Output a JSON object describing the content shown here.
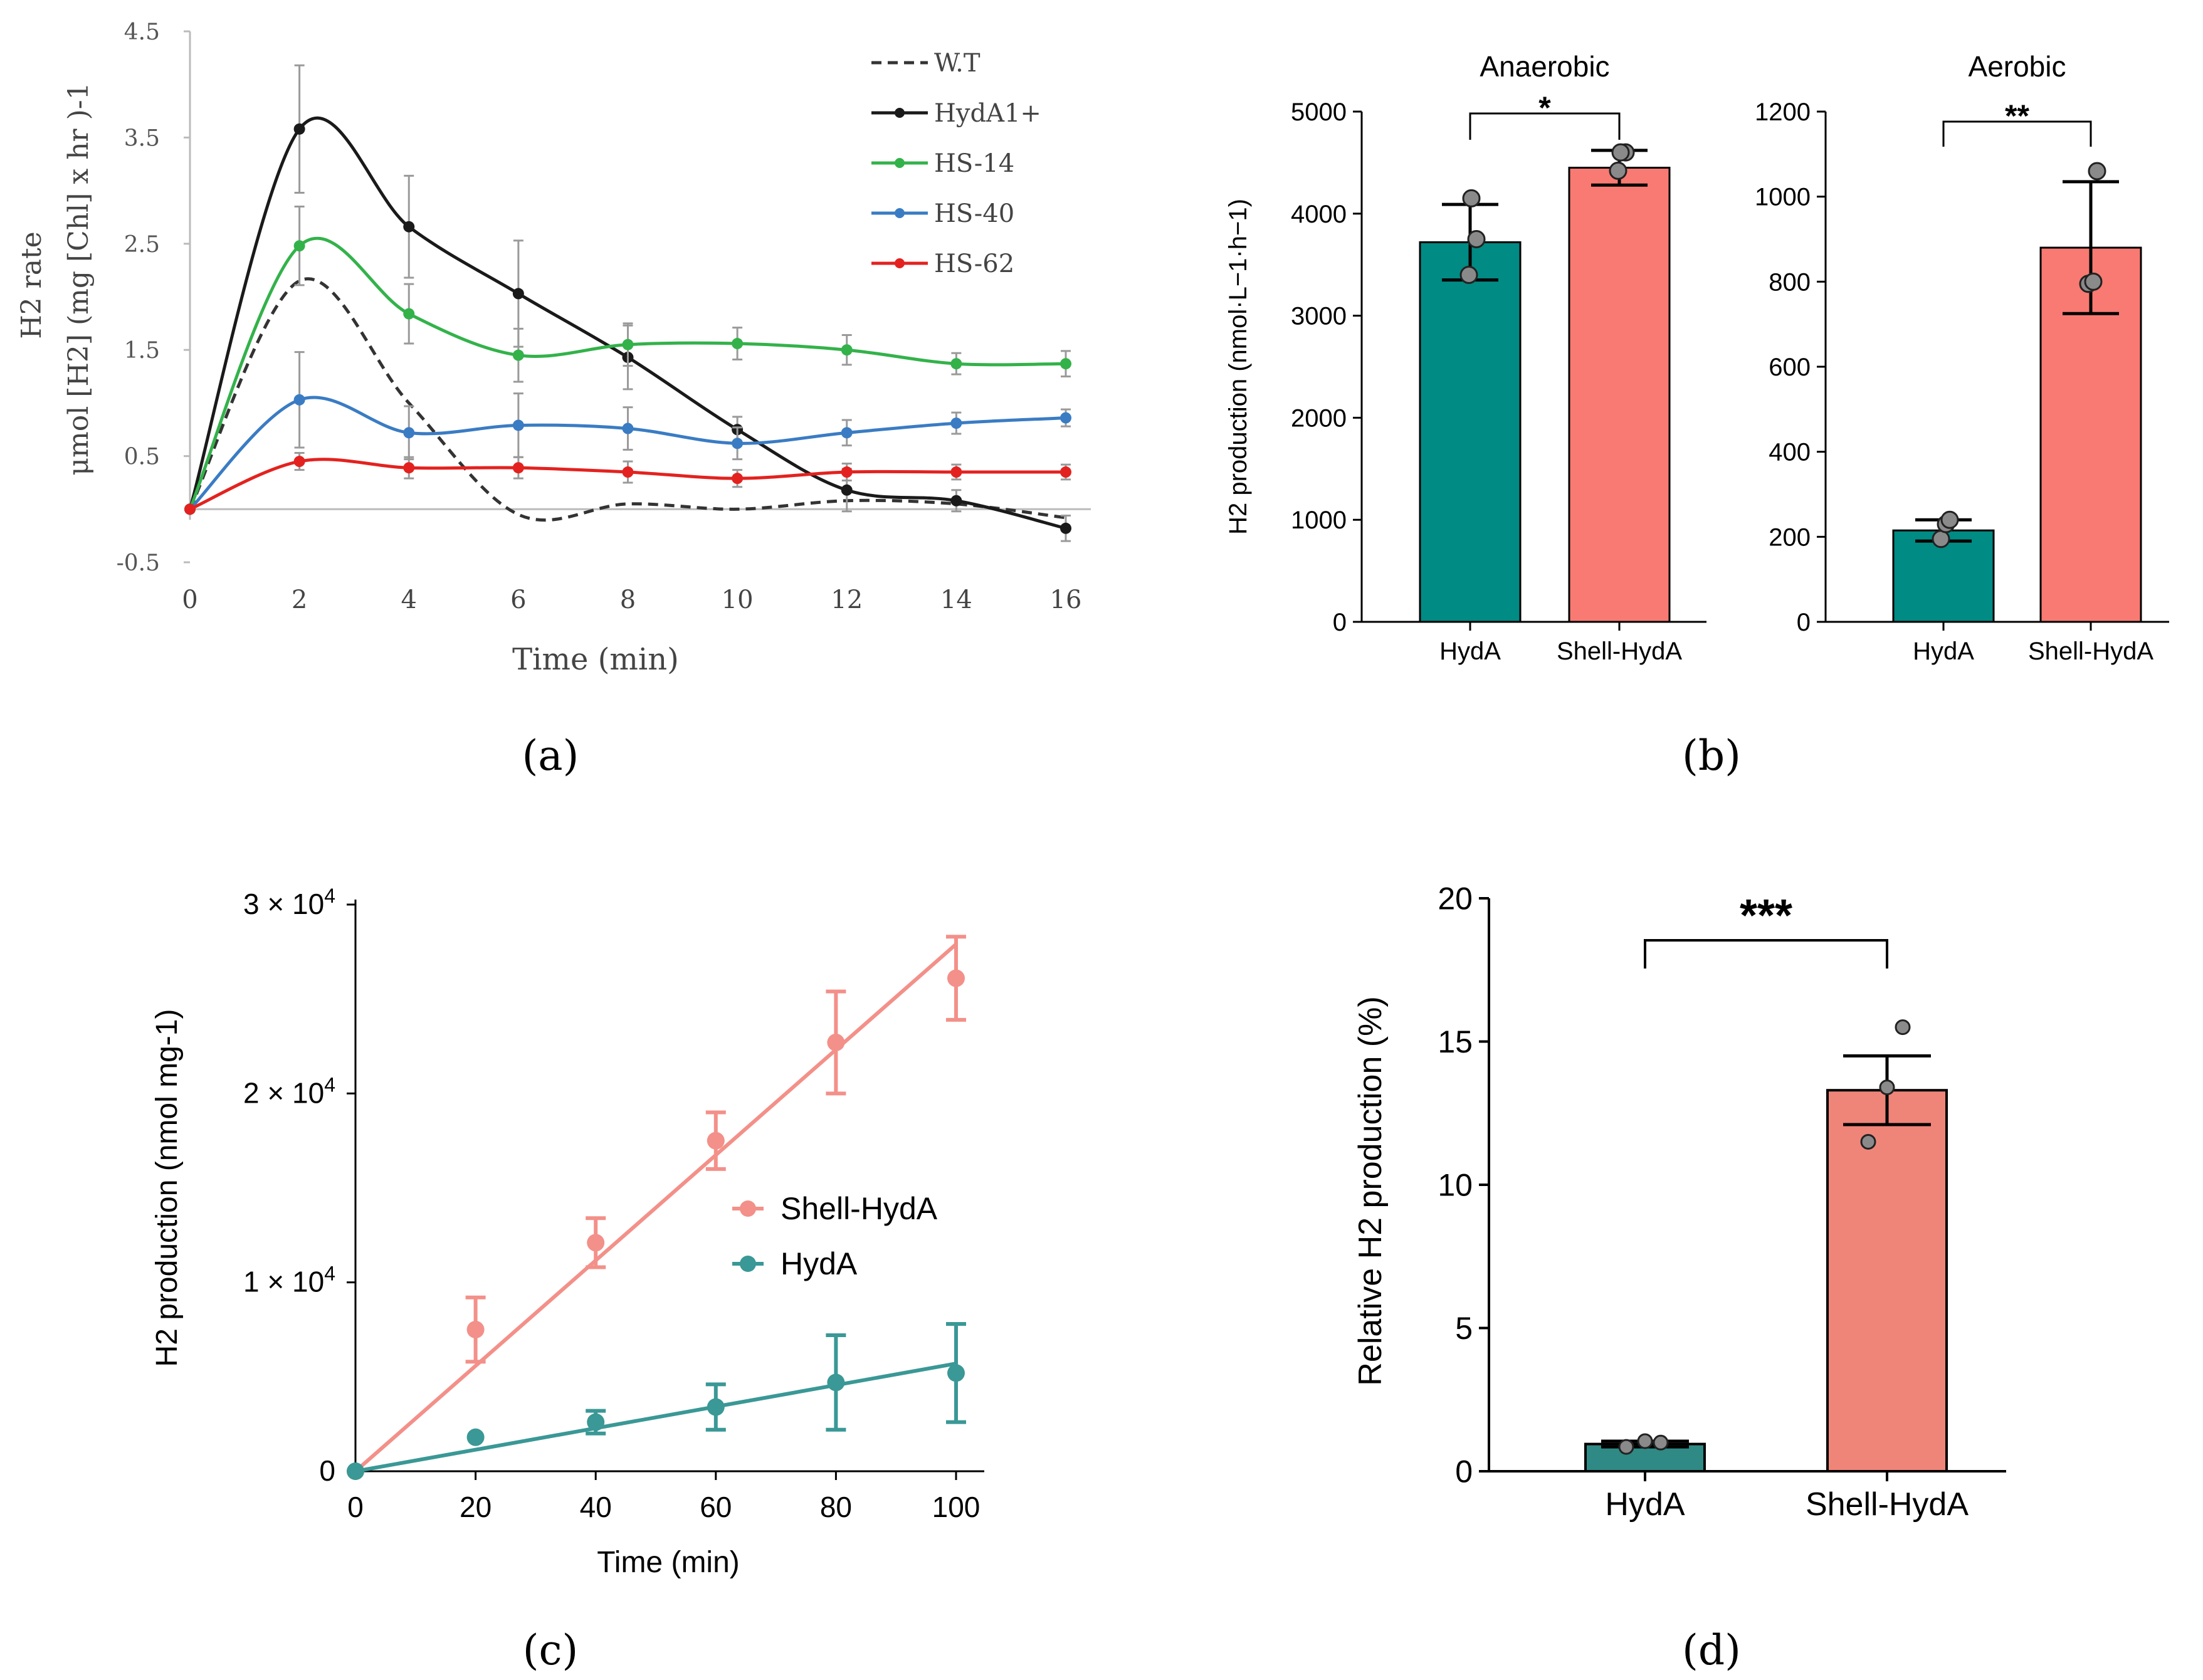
{
  "panel_labels": {
    "a": "(a)",
    "b": "(b)",
    "c": "(c)",
    "d": "(d)"
  },
  "colors": {
    "wt": "#333333",
    "hyda1": "#1a1a1a",
    "hs14": "#33b24a",
    "hs40": "#3a7cc4",
    "hs62": "#e3221f",
    "teal": "#008b84",
    "salmon": "#f87a72",
    "teal_c": "#3a9896",
    "salmon_c": "#f39089",
    "teal_d": "#2f8a85",
    "salmon_d": "#ef8579"
  },
  "chart_data": [
    {
      "id": "a",
      "type": "line",
      "title": "",
      "xlabel": "Time (min)",
      "ylabel_line1": "H2 rate",
      "ylabel_line2": "μmol [H2] (mg [Chl] x hr )-1",
      "xlim": [
        0,
        16
      ],
      "ylim": [
        -0.5,
        4.5
      ],
      "xticks": [
        "0",
        "2",
        "4",
        "6",
        "8",
        "10",
        "12",
        "14",
        "16"
      ],
      "yticks": [
        "-0.5",
        "0.5",
        "1.5",
        "2.5",
        "3.5",
        "4.5"
      ],
      "x": [
        0,
        2,
        4,
        6,
        8,
        10,
        12,
        14,
        16
      ],
      "series": [
        {
          "name": "W.T",
          "style": "dashed",
          "values": [
            0,
            2.15,
            1.0,
            -0.05,
            0.05,
            0.0,
            0.08,
            0.05,
            -0.08
          ],
          "errors": []
        },
        {
          "name": "HydA1+",
          "style": "solid",
          "values": [
            0,
            3.58,
            2.66,
            2.03,
            1.43,
            0.75,
            0.18,
            0.08,
            -0.18
          ],
          "errors": [
            0,
            0.6,
            0.48,
            0.5,
            0.3,
            0.12,
            0.2,
            0.1,
            0.12
          ]
        },
        {
          "name": "HS-14",
          "style": "solid",
          "values": [
            0,
            2.48,
            1.84,
            1.45,
            1.55,
            1.56,
            1.5,
            1.37,
            1.37
          ],
          "errors": [
            0,
            0.37,
            0.28,
            0.25,
            0.2,
            0.15,
            0.14,
            0.1,
            0.12
          ]
        },
        {
          "name": "HS-40",
          "style": "solid",
          "values": [
            0,
            1.03,
            0.72,
            0.79,
            0.76,
            0.62,
            0.72,
            0.81,
            0.86
          ],
          "errors": [
            0,
            0.45,
            0.25,
            0.3,
            0.2,
            0.15,
            0.12,
            0.1,
            0.08
          ]
        },
        {
          "name": "HS-62",
          "style": "solid",
          "values": [
            0,
            0.45,
            0.39,
            0.39,
            0.35,
            0.29,
            0.35,
            0.35,
            0.35
          ],
          "errors": [
            0,
            0.08,
            0.1,
            0.1,
            0.1,
            0.08,
            0.08,
            0.07,
            0.07
          ]
        }
      ]
    },
    {
      "id": "b1",
      "type": "bar",
      "title": "Anaerobic",
      "ylabel": "H2 production (nmol·L−1·h−1)",
      "ylim": [
        0,
        5000
      ],
      "yticks": [
        "0",
        "1000",
        "2000",
        "3000",
        "4000",
        "5000"
      ],
      "categories": [
        "HydA",
        "Shell-HydA"
      ],
      "values": [
        3720,
        4450
      ],
      "errors": [
        370,
        170
      ],
      "points": [
        [
          3400,
          3750,
          4150
        ],
        [
          4420,
          4600,
          4600
        ]
      ],
      "significance": "*"
    },
    {
      "id": "b2",
      "type": "bar",
      "title": "Aerobic",
      "ylim": [
        0,
        1200
      ],
      "yticks": [
        "0",
        "200",
        "400",
        "600",
        "800",
        "1000",
        "1200"
      ],
      "categories": [
        "HydA",
        "Shell-HydA"
      ],
      "values": [
        215,
        880
      ],
      "errors": [
        25,
        155
      ],
      "points": [
        [
          195,
          230,
          240
        ],
        [
          795,
          800,
          1060
        ]
      ],
      "significance": "**"
    },
    {
      "id": "c",
      "type": "scatter",
      "title": "",
      "xlabel": "Time (min)",
      "ylabel": "H2 production (nmol mg-1)",
      "xlim": [
        0,
        100
      ],
      "ylim": [
        0,
        30000
      ],
      "xticks": [
        "0",
        "20",
        "40",
        "60",
        "80",
        "100"
      ],
      "yticks": [
        "0",
        "1 × 10^4",
        "2 × 10^4",
        "3 × 10^4"
      ],
      "x": [
        0,
        20,
        40,
        60,
        80,
        100
      ],
      "series": [
        {
          "name": "Shell-HydA",
          "values": [
            0,
            7500,
            12100,
            17500,
            22700,
            26100
          ],
          "errors": [
            0,
            1700,
            1300,
            1500,
            2700,
            2200
          ],
          "fit": [
            0,
            27900
          ]
        },
        {
          "name": "HydA",
          "values": [
            0,
            1800,
            2600,
            3400,
            4700,
            5200
          ],
          "errors": [
            0,
            0,
            600,
            1200,
            2500,
            2600
          ],
          "fit": [
            0,
            5700
          ]
        }
      ]
    },
    {
      "id": "d",
      "type": "bar",
      "title": "",
      "ylabel": "Relative H2 production (%)",
      "ylim": [
        0,
        20
      ],
      "yticks": [
        "0",
        "5",
        "10",
        "15",
        "20"
      ],
      "categories": [
        "HydA",
        "Shell-HydA"
      ],
      "values": [
        0.95,
        13.3
      ],
      "errors": [
        0.1,
        1.2
      ],
      "points": [
        [
          0.85,
          1.05,
          1.0
        ],
        [
          11.5,
          13.4,
          15.5
        ]
      ],
      "significance": "***"
    }
  ]
}
